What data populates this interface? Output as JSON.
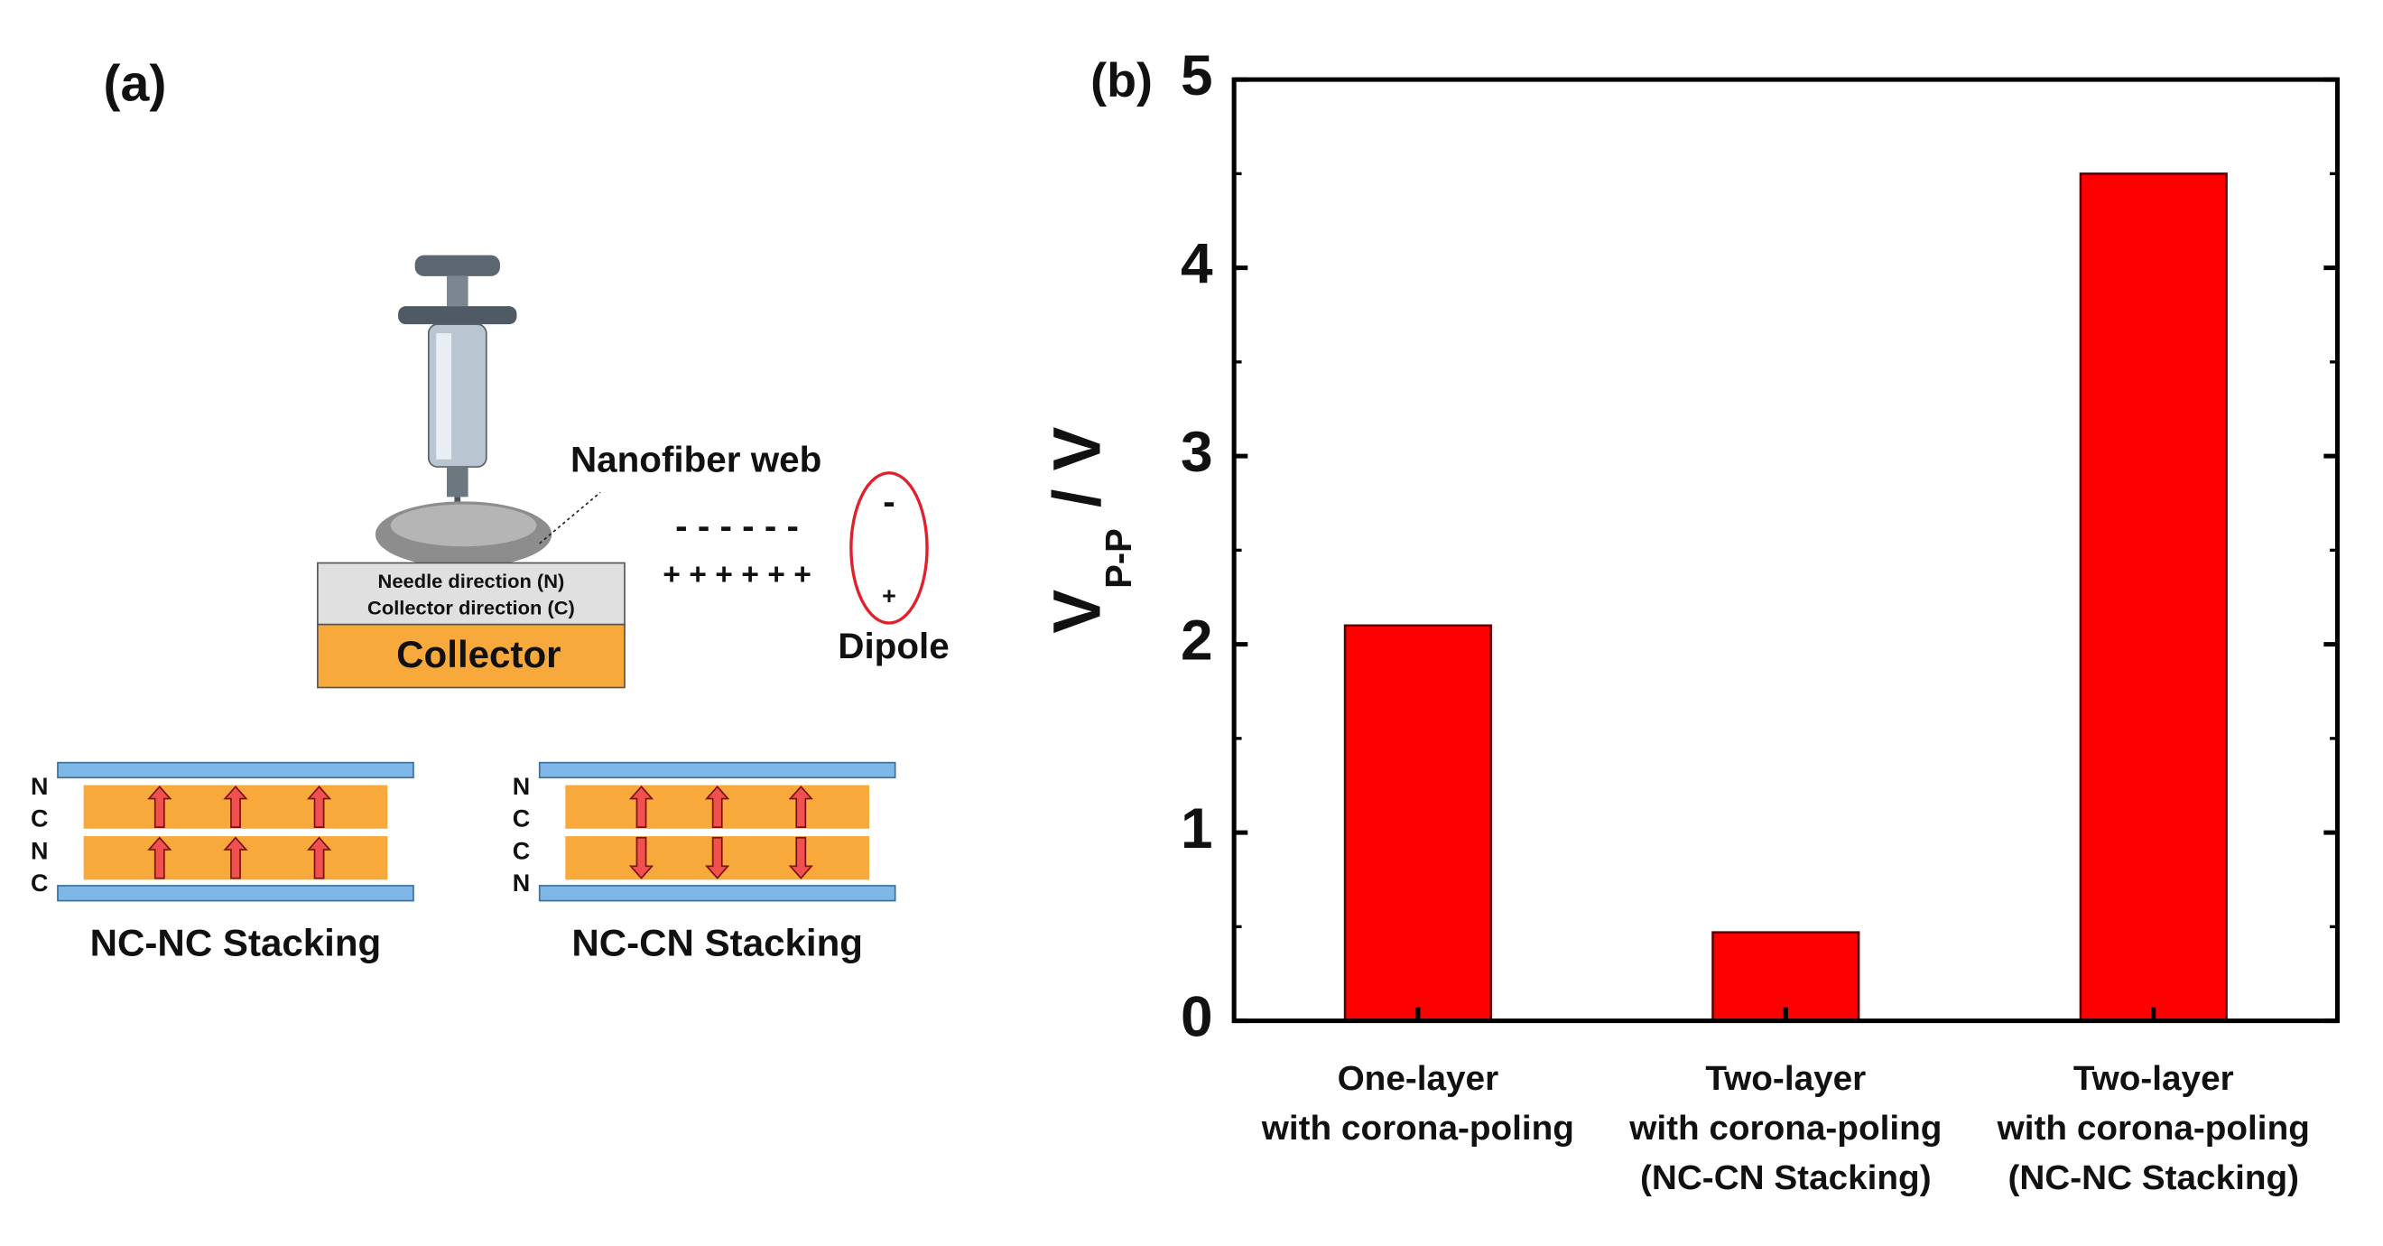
{
  "diagram": {
    "panel_label": "(a)",
    "web_label": "Nanofiber web",
    "needle_direction": "Needle direction (N)",
    "collector_direction": "Collector direction (C)",
    "collector": "Collector",
    "minus_row": "- - - - - -",
    "plus_row": "+ + + + + +",
    "dipole_minus": "-",
    "dipole_plus": "+",
    "dipole": "Dipole",
    "left_stack": {
      "letters": [
        "N",
        "C",
        "N",
        "C"
      ],
      "title": "NC-NC Stacking"
    },
    "right_stack": {
      "letters": [
        "N",
        "C",
        "C",
        "N"
      ],
      "title": "NC-CN Stacking"
    }
  },
  "chart_data": {
    "type": "bar",
    "panel_label": "(b)",
    "ylabel": "V",
    "ylabel_sub": "P-P",
    "ylabel_suffix": "/ V",
    "categories": [
      [
        "One-layer",
        "with corona-poling"
      ],
      [
        "Two-layer",
        "with corona-poling",
        "(NC-CN Stacking)"
      ],
      [
        "Two-layer",
        "with corona-poling",
        "(NC-NC Stacking)"
      ]
    ],
    "values": [
      2.1,
      0.47,
      4.5
    ],
    "color": "#ff0000",
    "ylim": [
      0,
      5
    ],
    "yticks": [
      0,
      1,
      2,
      3,
      4,
      5
    ]
  }
}
